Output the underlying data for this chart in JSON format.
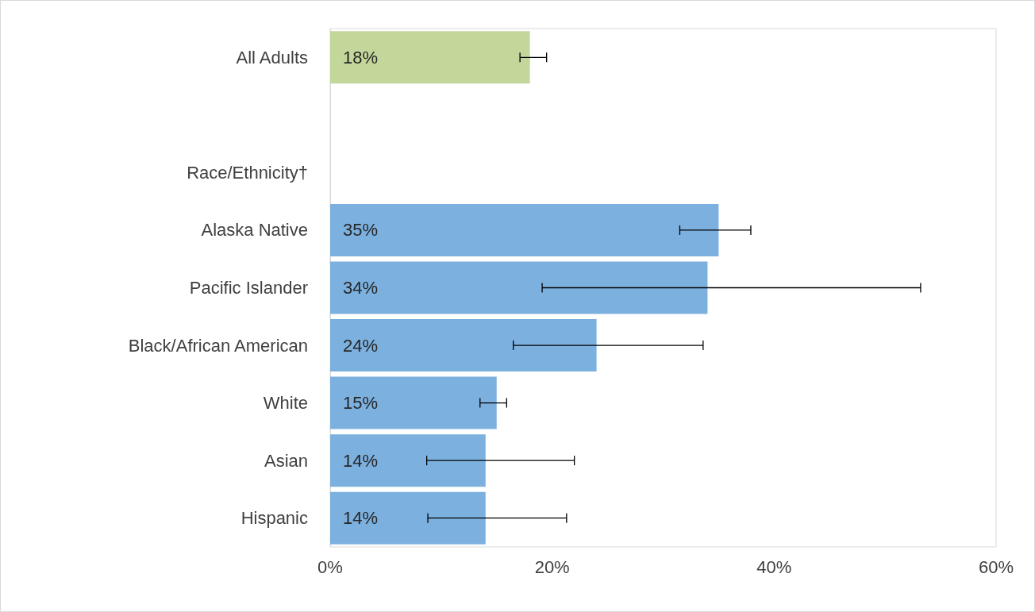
{
  "chart_data": {
    "type": "bar",
    "orientation": "horizontal",
    "categories": [
      "All Adults",
      null,
      "Race/Ethnicity†",
      "Alaska Native",
      "Pacific Islander",
      "Black/African American",
      "White",
      "Asian",
      "Hispanic"
    ],
    "values": [
      18,
      null,
      null,
      35,
      34,
      24,
      15,
      14,
      14
    ],
    "colors": [
      "#c4d79b",
      null,
      null,
      "#7cb0df",
      "#7cb0df",
      "#7cb0df",
      "#7cb0df",
      "#7cb0df",
      "#7cb0df"
    ],
    "errors": [
      [
        17.1,
        19.5
      ],
      null,
      null,
      [
        31.5,
        37.9
      ],
      [
        19.1,
        53.2
      ],
      [
        16.5,
        33.6
      ],
      [
        13.5,
        15.9
      ],
      [
        8.7,
        22.0
      ],
      [
        8.8,
        21.3
      ]
    ],
    "value_labels": [
      "18%",
      null,
      null,
      "35%",
      "34%",
      "24%",
      "15%",
      "14%",
      "14%"
    ],
    "xlim": [
      0,
      60
    ],
    "xticks": [
      {
        "value": 0,
        "label": "0%"
      },
      {
        "value": 20,
        "label": "20%"
      },
      {
        "value": 40,
        "label": "40%"
      },
      {
        "value": 60,
        "label": "60%"
      }
    ],
    "grid": false
  }
}
